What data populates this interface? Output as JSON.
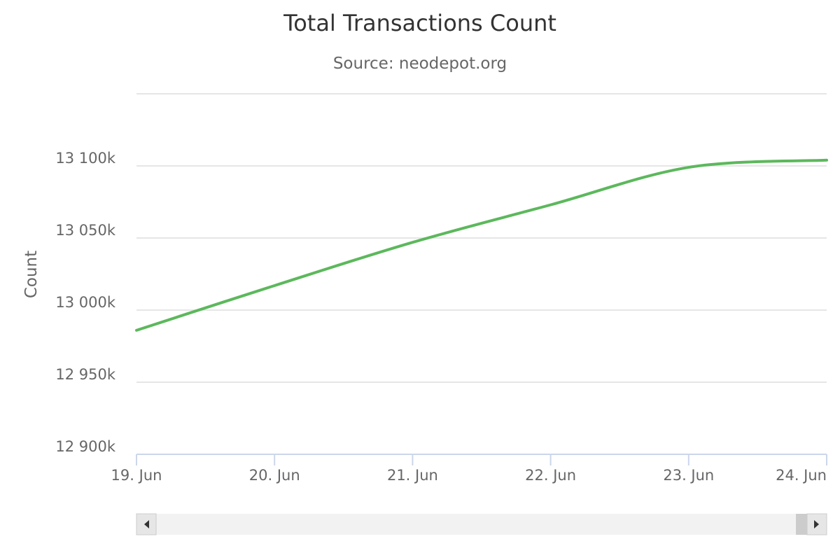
{
  "chart_data": {
    "type": "line",
    "title": "Total Transactions Count",
    "subtitle": "Source: neodepot.org",
    "ylabel": "Count",
    "xlabel": "",
    "ylim": [
      12900000,
      13150000
    ],
    "yticks": [
      12900000,
      12950000,
      13000000,
      13050000,
      13100000,
      13150000
    ],
    "ytick_labels": [
      "12 900k",
      "12 950k",
      "13 000k",
      "13 050k",
      "13 100k",
      ""
    ],
    "x_ticks": [
      "2023-06-19",
      "2023-06-20",
      "2023-06-21",
      "2023-06-22",
      "2023-06-23",
      "2023-06-24"
    ],
    "x_tick_labels": [
      "19. Jun",
      "20. Jun",
      "21. Jun",
      "22. Jun",
      "23. Jun",
      "24. Jun"
    ],
    "xlim": [
      "2023-06-19",
      "2023-06-24"
    ],
    "grid": true,
    "legend": "none",
    "series": [
      {
        "color": "#5cb85c",
        "x": [
          "2023-06-19",
          "2023-06-20",
          "2023-06-21",
          "2023-06-22",
          "2023-06-23",
          "2023-06-24"
        ],
        "y": [
          12986000,
          13017000,
          13047000,
          13073000,
          13099000,
          13104000
        ]
      }
    ]
  },
  "scrollbar": {
    "left_icon": "triangle-left-icon",
    "right_icon": "triangle-right-icon",
    "track_color": "#f2f2f2",
    "handle_color": "#cccccc"
  }
}
